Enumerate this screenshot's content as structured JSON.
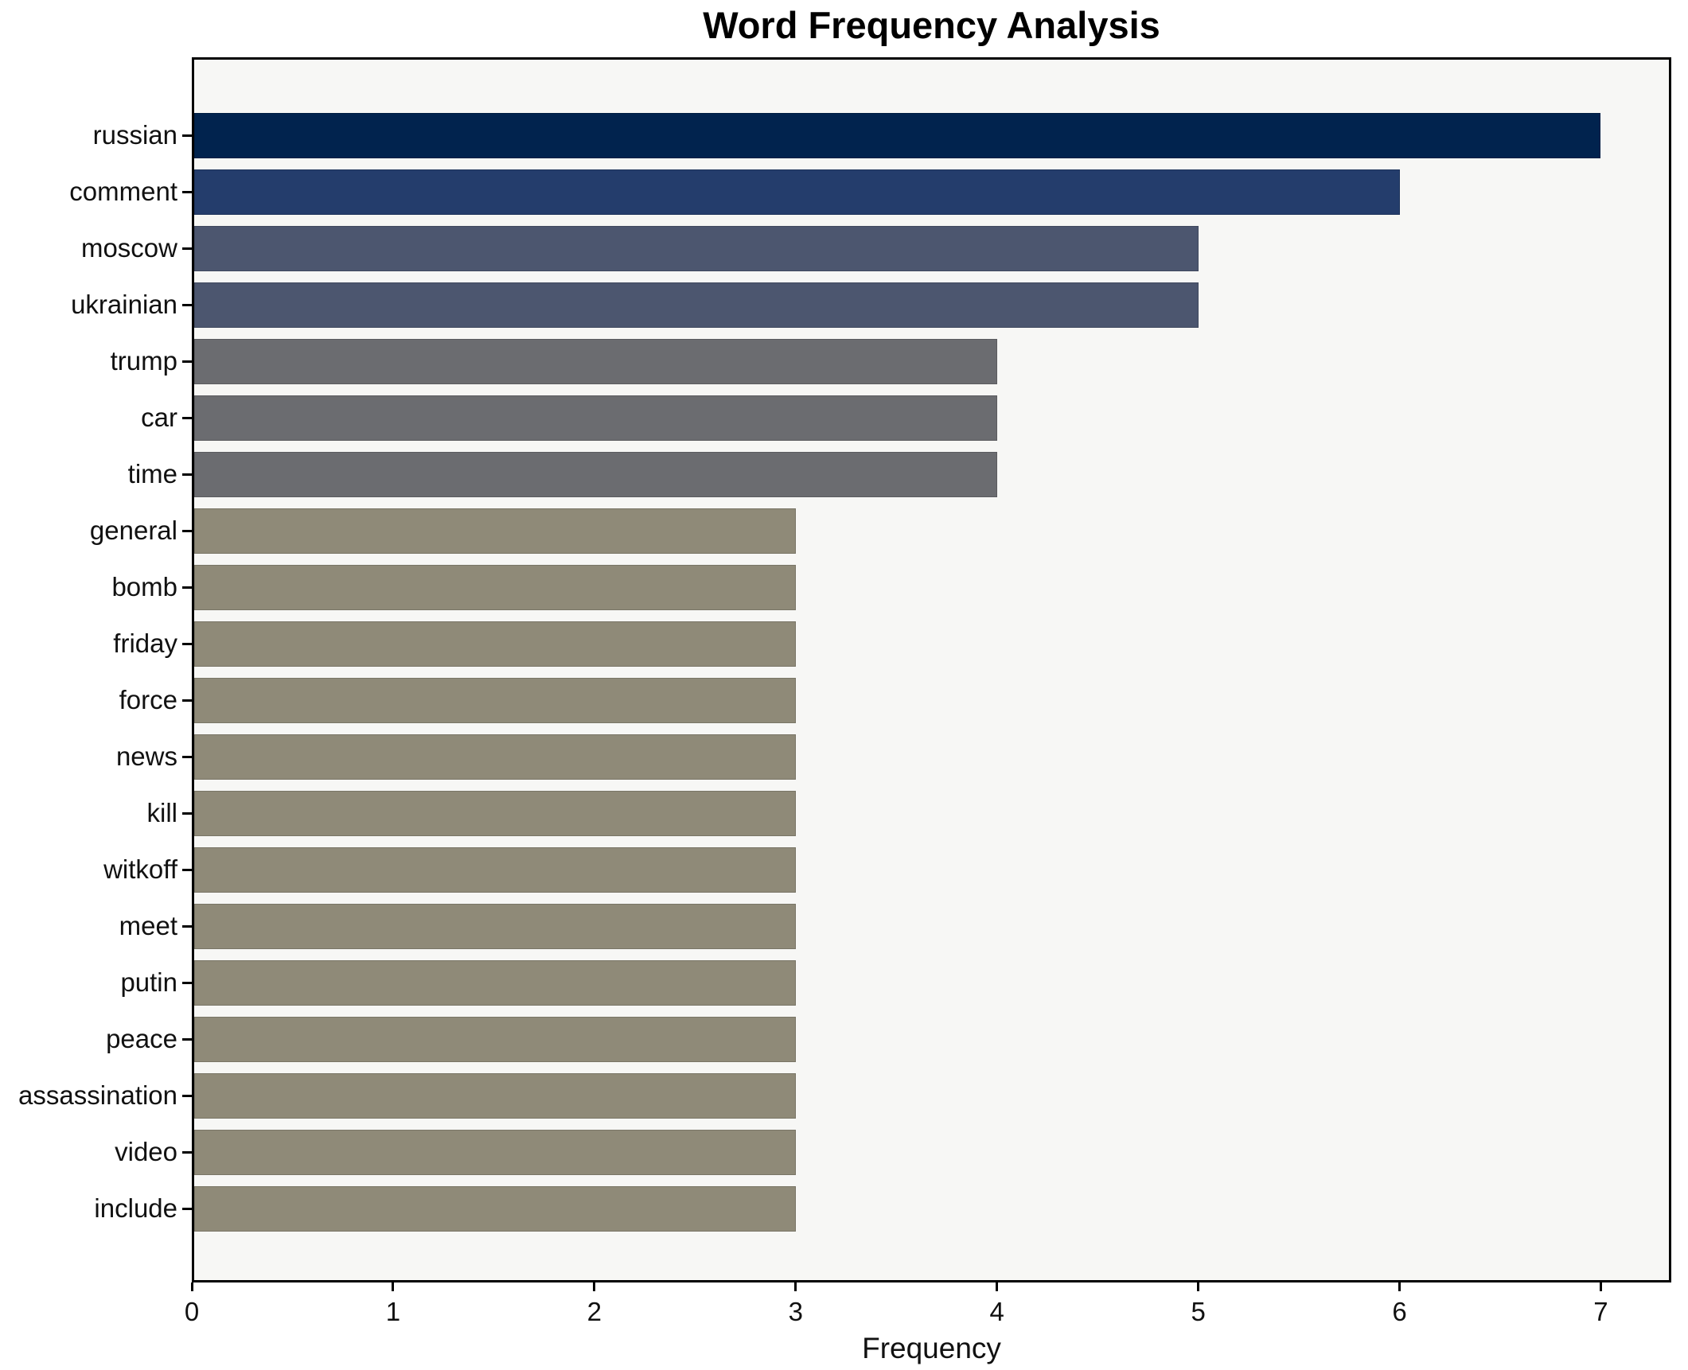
{
  "page": {
    "background_color": "#ffffff",
    "plot_background_color": "#f7f7f5",
    "spine_color": "#000000",
    "text_color": "#111111"
  },
  "chart_data": {
    "type": "bar",
    "orientation": "horizontal",
    "title": "Word Frequency Analysis",
    "xlabel": "Frequency",
    "ylabel": "",
    "categories": [
      "russian",
      "comment",
      "moscow",
      "ukrainian",
      "trump",
      "car",
      "time",
      "general",
      "bomb",
      "friday",
      "force",
      "news",
      "kill",
      "witkoff",
      "meet",
      "putin",
      "peace",
      "assassination",
      "video",
      "include"
    ],
    "values": [
      7,
      6,
      5,
      5,
      4,
      4,
      4,
      3,
      3,
      3,
      3,
      3,
      3,
      3,
      3,
      3,
      3,
      3,
      3,
      3
    ],
    "bar_colors": [
      "#01234e",
      "#243d6c",
      "#4c566f",
      "#4c566f",
      "#6b6c70",
      "#6b6c70",
      "#6b6c70",
      "#8f8a78",
      "#8f8a78",
      "#8f8a78",
      "#8f8a78",
      "#8f8a78",
      "#8f8a78",
      "#8f8a78",
      "#8f8a78",
      "#8f8a78",
      "#8f8a78",
      "#8f8a78",
      "#8f8a78",
      "#8f8a78"
    ],
    "xlim": [
      0,
      7.35
    ],
    "x_ticks": [
      0,
      1,
      2,
      3,
      4,
      5,
      6,
      7
    ],
    "grid": false,
    "legend": null
  }
}
